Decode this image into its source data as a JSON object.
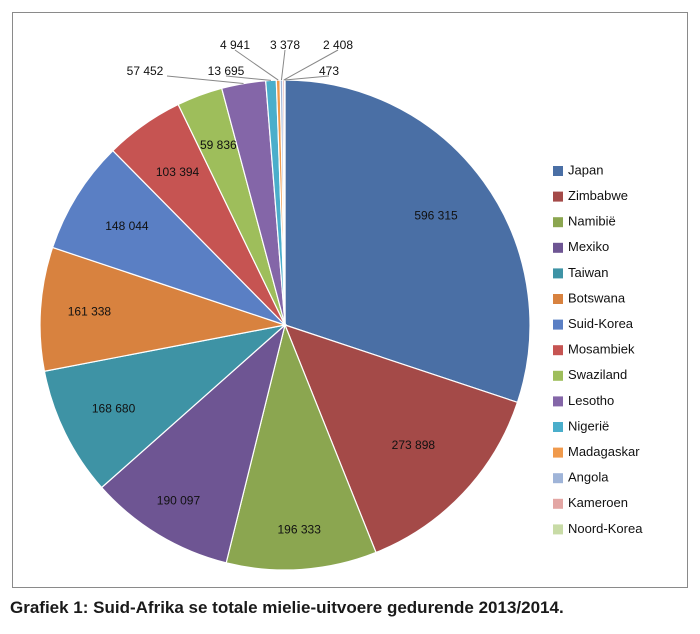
{
  "caption": "Grafiek 1: Suid-Afrika se totale mielie-uitvoere gedurende 2013/2014.",
  "chart_data": {
    "type": "pie",
    "title": "",
    "legend_position": "right",
    "series": [
      {
        "name": "Japan",
        "value": 596315,
        "label": "596 315",
        "color": "#4a6fa5"
      },
      {
        "name": "Zimbabwe",
        "value": 273898,
        "label": "273 898",
        "color": "#a44a48"
      },
      {
        "name": "Namibië",
        "value": 196333,
        "label": "196 333",
        "color": "#8ba650"
      },
      {
        "name": "Mexiko",
        "value": 190097,
        "label": "190 097",
        "color": "#6e5593"
      },
      {
        "name": "Taiwan",
        "value": 168680,
        "label": "168 680",
        "color": "#3e93a5"
      },
      {
        "name": "Botswana",
        "value": 161338,
        "label": "161 338",
        "color": "#d8823f"
      },
      {
        "name": "Suid-Korea",
        "value": 148044,
        "label": "148 044",
        "color": "#5a7fc4"
      },
      {
        "name": "Mosambiek",
        "value": 103394,
        "label": "103 394",
        "color": "#c65452"
      },
      {
        "name": "Swaziland",
        "value": 59836,
        "label": "59 836",
        "color": "#9ebe5b"
      },
      {
        "name": "Lesotho",
        "value": 57452,
        "label": "57 452",
        "color": "#8466a8"
      },
      {
        "name": "Nigerië",
        "value": 13695,
        "label": "13 695",
        "color": "#4aaecb"
      },
      {
        "name": "Madagaskar",
        "value": 4941,
        "label": "4 941",
        "color": "#f09a4c"
      },
      {
        "name": "Angola",
        "value": 3378,
        "label": "3 378",
        "color": "#9fb4d8"
      },
      {
        "name": "Kameroen",
        "value": 2408,
        "label": "2 408",
        "color": "#e3a6a4"
      },
      {
        "name": "Noord-Korea",
        "value": 473,
        "label": "473",
        "color": "#c8dba6"
      }
    ]
  }
}
